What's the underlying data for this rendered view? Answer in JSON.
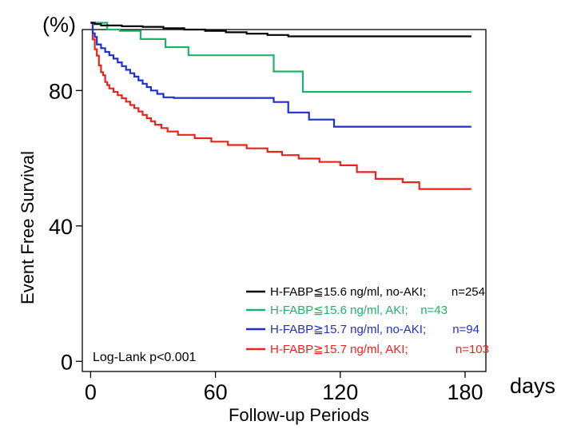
{
  "chart_data": {
    "type": "line",
    "step": true,
    "title": "",
    "xlabel": "Follow-up Periods",
    "x_unit_label": "days",
    "ylabel": "Event  Free Survival",
    "y_unit_label": "(%)",
    "xlim": [
      -4,
      190
    ],
    "ylim": [
      -3,
      98
    ],
    "xticks": [
      0,
      60,
      120,
      180
    ],
    "xtick_labels": [
      "0",
      "60",
      "120",
      "180"
    ],
    "yticks": [
      0,
      40,
      80
    ],
    "ytick_labels": [
      "0",
      "40",
      "80"
    ],
    "grid": false,
    "legend_position": "bottom-right",
    "annotation": "Log-Lank p<0.001",
    "series": [
      {
        "name": "H-FABP≦15.6 ng/ml, no-AKI;",
        "n_label": "n=254",
        "color": "#000000",
        "x": [
          0,
          2,
          5,
          8,
          15,
          25,
          35,
          45,
          55,
          65,
          75,
          85,
          95,
          183
        ],
        "y": [
          100,
          99.6,
          99.2,
          99.2,
          99.0,
          98.8,
          98.4,
          98.0,
          97.6,
          97.2,
          96.8,
          96.4,
          96.0,
          96.0
        ]
      },
      {
        "name": "H-FABP≦15.6 ng/ml, AKI;",
        "n_label": "n=43",
        "color": "#1fb36a",
        "x": [
          0,
          4,
          8,
          14,
          24,
          36,
          47,
          88,
          102,
          183
        ],
        "y": [
          100,
          100,
          98,
          97.6,
          95.2,
          92.8,
          90.4,
          85.6,
          79.6,
          79.6
        ]
      },
      {
        "name": "H-FABP≧15.7 ng/ml, no-AKI;",
        "n_label": "n=94",
        "color": "#1f2fd0",
        "x": [
          0,
          1,
          2,
          3,
          5,
          7,
          9,
          11,
          13,
          15,
          17,
          19,
          21,
          23,
          25,
          27,
          29,
          32,
          35,
          40,
          88,
          95,
          105,
          117,
          183
        ],
        "y": [
          100,
          96.9,
          95.8,
          93.6,
          92.5,
          91.4,
          90.4,
          89.4,
          88.3,
          87.2,
          86.1,
          85.1,
          84.1,
          83.0,
          82.0,
          81.0,
          80.0,
          79.0,
          78.0,
          77.8,
          76.6,
          73.5,
          71.4,
          69.3,
          69.3
        ]
      },
      {
        "name": "H-FABP≧15.7 ng/ml, AKI;",
        "n_label": "n=103",
        "color": "#e8241c",
        "x": [
          0,
          1,
          2,
          3,
          4,
          5,
          6,
          7,
          8,
          9,
          11,
          13,
          15,
          17,
          19,
          21,
          23,
          25,
          27,
          29,
          31,
          34,
          37,
          42,
          50,
          58,
          66,
          75,
          85,
          92,
          100,
          110,
          120,
          128,
          137,
          150,
          158,
          183
        ],
        "y": [
          100,
          95.1,
          92.2,
          90.3,
          87.4,
          85.4,
          84.5,
          82.5,
          81.6,
          80.6,
          79.6,
          78.6,
          77.7,
          76.7,
          75.7,
          74.8,
          73.8,
          72.8,
          71.8,
          70.9,
          69.9,
          68.9,
          67.9,
          66.9,
          65.9,
          64.9,
          63.9,
          62.9,
          61.9,
          60.9,
          59.9,
          58.9,
          57.9,
          55.9,
          53.9,
          52.9,
          50.9,
          50.9
        ]
      }
    ]
  }
}
